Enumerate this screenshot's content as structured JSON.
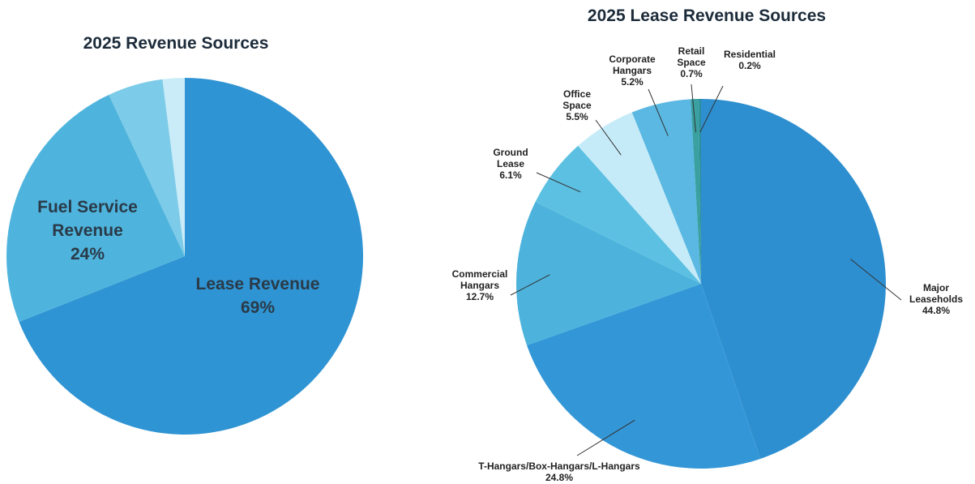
{
  "chart_data": [
    {
      "type": "pie",
      "title": "2025 Revenue Sources",
      "categories": [
        "Lease Revenue",
        "Fuel Service Revenue",
        null,
        null
      ],
      "values": [
        69,
        24,
        5,
        2
      ],
      "value_labels": [
        "69%",
        "24%",
        null,
        null
      ],
      "colors": [
        "#2f94d3",
        "#4fb4dd",
        "#7ccbe8",
        "#c9ecf8"
      ]
    },
    {
      "type": "pie",
      "title": "2025 Lease Revenue Sources",
      "categories": [
        "Major Leaseholds",
        "T-Hangars/Box-Hangars/L-Hangars",
        "Commercial Hangars",
        "Ground Lease",
        "Office Space",
        "Corporate Hangars",
        "Retail Space",
        "Residential"
      ],
      "values": [
        44.8,
        24.8,
        12.7,
        6.1,
        5.5,
        5.2,
        0.7,
        0.2
      ],
      "value_labels": [
        "44.8%",
        "24.8%",
        "12.7%",
        "6.1%",
        "5.5%",
        "5.2%",
        "0.7%",
        "0.2%"
      ],
      "colors": [
        "#2e8fd0",
        "#3397d7",
        "#4db3dc",
        "#5cc0e2",
        "#c6ebf8",
        "#5ab8e2",
        "#3aa0a0",
        "#2a8f9a"
      ]
    }
  ]
}
